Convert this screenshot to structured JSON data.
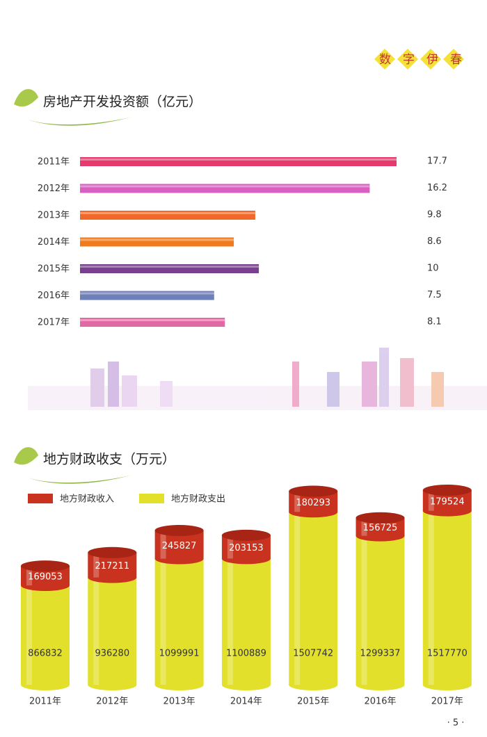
{
  "header": "数字伊春",
  "page_number": "· 5 ·",
  "chart_data": [
    {
      "type": "bar",
      "orientation": "horizontal",
      "title": "房地产开发投资额（亿元）",
      "categories": [
        "2011年",
        "2012年",
        "2013年",
        "2014年",
        "2015年",
        "2016年",
        "2017年"
      ],
      "values": [
        17.7,
        16.2,
        9.8,
        8.6,
        10,
        7.5,
        8.1
      ],
      "colors": [
        "#e63a6e",
        "#d860c0",
        "#f0682a",
        "#f07a1c",
        "#7a3f8e",
        "#6f7fb8",
        "#e26aa4"
      ]
    },
    {
      "type": "stacked_bar",
      "title": "地方财政收支（万元）",
      "categories": [
        "2011年",
        "2012年",
        "2013年",
        "2014年",
        "2015年",
        "2016年",
        "2017年"
      ],
      "series": [
        {
          "name": "地方财政支出",
          "color": "#e2e02a",
          "values": [
            866832,
            936280,
            1099991,
            1100889,
            1507742,
            1299337,
            1517770
          ]
        },
        {
          "name": "地方财政收入",
          "color": "#c8321e",
          "values": [
            169053,
            217211,
            245827,
            203153,
            180293,
            156725,
            179524
          ]
        }
      ],
      "legend_order": [
        1,
        0
      ]
    }
  ]
}
